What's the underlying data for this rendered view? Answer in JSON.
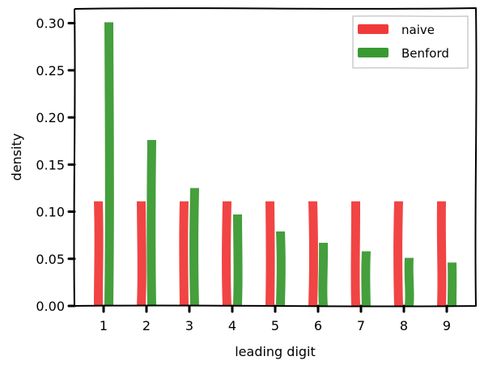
{
  "chart_data": {
    "type": "bar",
    "title": "",
    "xlabel": "leading digit",
    "ylabel": "density",
    "categories": [
      "1",
      "2",
      "3",
      "4",
      "5",
      "6",
      "7",
      "8",
      "9"
    ],
    "series": [
      {
        "name": "naive",
        "color": "#f03a3a",
        "values": [
          0.111,
          0.111,
          0.111,
          0.111,
          0.111,
          0.111,
          0.111,
          0.111,
          0.111
        ]
      },
      {
        "name": "Benford",
        "color": "#3a9a32",
        "values": [
          0.301,
          0.176,
          0.125,
          0.097,
          0.079,
          0.067,
          0.058,
          0.051,
          0.046
        ]
      }
    ],
    "ylim": [
      0,
      0.316
    ],
    "yticks": [
      "0.00",
      "0.05",
      "0.10",
      "0.15",
      "0.20",
      "0.25",
      "0.30"
    ],
    "legend_position": "top-right",
    "grid": false,
    "style": "xkcd"
  }
}
